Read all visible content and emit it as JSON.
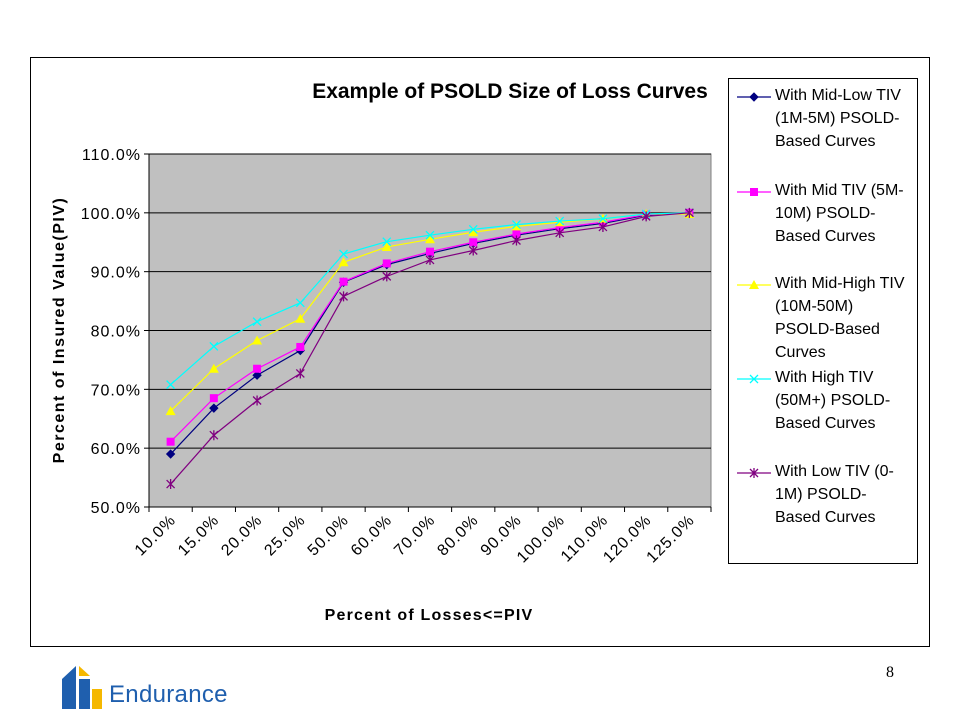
{
  "page": {
    "number": "8"
  },
  "brand": {
    "name": "Endurance",
    "logo_icon": "endurance-logo-icon"
  },
  "colors": {
    "plot_bg": "#c0c0c0",
    "grid": "#000000",
    "brand_blue": "#1f5fae",
    "brand_yellow": "#f5b800"
  },
  "chart_data": {
    "type": "line",
    "title": "Example of PSOLD Size of Loss Curves",
    "xlabel": "Percent of Losses<=PIV",
    "ylabel": "Percent of Insured Value(PIV)",
    "ylim": [
      0.5,
      1.1
    ],
    "yticks": [
      "50.0%",
      "60.0%",
      "70.0%",
      "80.0%",
      "90.0%",
      "100.0%",
      "110.0%"
    ],
    "categories": [
      "10.0%",
      "15.0%",
      "20.0%",
      "25.0%",
      "50.0%",
      "60.0%",
      "70.0%",
      "80.0%",
      "90.0%",
      "100.0%",
      "110.0%",
      "120.0%",
      "125.0%"
    ],
    "grid": "horizontal",
    "legend_position": "right",
    "series": [
      {
        "name": "With Mid-Low TIV (1M-5M) PSOLD-Based Curves",
        "color": "#000080",
        "marker": "diamond",
        "values": [
          0.59,
          0.668,
          0.724,
          0.766,
          0.882,
          0.912,
          0.931,
          0.948,
          0.962,
          0.973,
          0.982,
          0.996,
          1.0
        ]
      },
      {
        "name": "With Mid TIV (5M-10M) PSOLD-Based Curves",
        "color": "#ff00ff",
        "marker": "square",
        "values": [
          0.611,
          0.685,
          0.735,
          0.772,
          0.883,
          0.914,
          0.934,
          0.95,
          0.964,
          0.975,
          0.984,
          0.997,
          1.0
        ]
      },
      {
        "name": "With Mid-High TIV (10M-50M) PSOLD-Based Curves",
        "color": "#ffff00",
        "marker": "triangle",
        "values": [
          0.663,
          0.735,
          0.783,
          0.82,
          0.916,
          0.942,
          0.955,
          0.967,
          0.977,
          0.984,
          0.99,
          0.998,
          0.998
        ]
      },
      {
        "name": "With High TIV (50M+) PSOLD-Based Curves",
        "color": "#00ffff",
        "marker": "x",
        "values": [
          0.708,
          0.773,
          0.815,
          0.847,
          0.93,
          0.951,
          0.962,
          0.972,
          0.98,
          0.986,
          0.99,
          0.998,
          1.0
        ]
      },
      {
        "name": "With Low TIV (0-1M) PSOLD-Based Curves",
        "color": "#800080",
        "marker": "asterisk",
        "values": [
          0.539,
          0.622,
          0.681,
          0.727,
          0.858,
          0.892,
          0.92,
          0.936,
          0.953,
          0.966,
          0.976,
          0.994,
          1.0
        ]
      }
    ],
    "legend_lines": [
      [
        "With Mid-Low TIV",
        "(1M-5M) PSOLD-",
        "Based Curves"
      ],
      [
        "With Mid TIV (5M-",
        "10M) PSOLD-",
        "Based Curves"
      ],
      [
        "With Mid-High TIV",
        "(10M-50M)",
        "PSOLD-Based",
        "Curves"
      ],
      [
        "With High TIV",
        "(50M+) PSOLD-",
        "Based Curves"
      ],
      [
        "With Low TIV (0-",
        "1M) PSOLD-",
        "Based Curves"
      ]
    ]
  }
}
